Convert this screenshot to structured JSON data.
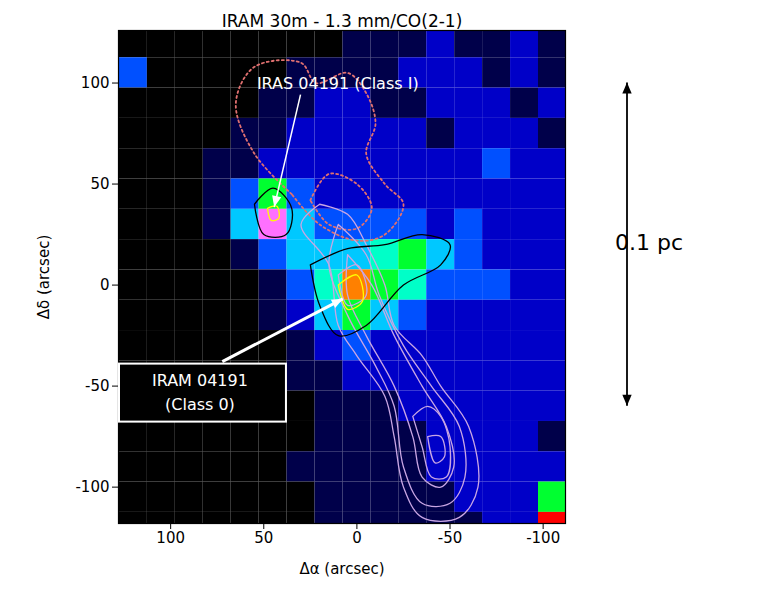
{
  "chart_data": {
    "type": "heatmap",
    "title": "IRAM 30m - 1.3 mm/CO(2-1)",
    "x_label": "Δα (arcsec)",
    "y_label": "Δδ (arcsec)",
    "xlim": [
      128,
      -112
    ],
    "ylim": [
      -118,
      126
    ],
    "xticks": [
      100,
      50,
      0,
      -50,
      -100
    ],
    "yticks": [
      -100,
      -50,
      0,
      50,
      100
    ],
    "cells": {
      "zlim": [
        0,
        10
      ],
      "x": [
        120,
        105,
        90,
        75,
        60,
        45,
        30,
        15,
        0,
        -15,
        -30,
        -45,
        -60,
        -75,
        -90,
        -105
      ],
      "y": [
        120,
        105,
        90,
        75,
        60,
        45,
        30,
        15,
        0,
        -15,
        -30,
        -45,
        -60,
        -75,
        -90,
        -105,
        -120
      ],
      "values": [
        [
          0,
          0,
          0,
          0,
          0,
          0,
          0,
          0,
          1,
          1,
          1,
          2,
          1,
          1,
          2,
          1
        ],
        [
          3,
          0,
          0,
          0,
          0,
          0,
          1,
          1,
          1,
          1,
          2,
          2,
          2,
          1,
          2,
          1
        ],
        [
          0,
          0,
          0,
          0,
          0,
          1,
          1,
          2,
          2,
          1,
          1,
          2,
          2,
          2,
          1,
          2
        ],
        [
          0,
          0,
          0,
          0,
          1,
          1,
          2,
          2,
          2,
          2,
          2,
          1,
          2,
          2,
          2,
          1
        ],
        [
          0,
          0,
          0,
          1,
          1,
          2,
          2,
          2,
          2,
          2,
          2,
          2,
          2,
          3,
          2,
          2
        ],
        [
          0,
          0,
          0,
          1,
          3,
          6,
          3,
          2,
          2,
          2,
          2,
          2,
          2,
          2,
          2,
          2
        ],
        [
          0,
          0,
          0,
          1,
          4,
          10,
          4,
          3,
          3,
          3,
          3,
          2,
          3,
          2,
          2,
          2
        ],
        [
          0,
          0,
          0,
          0,
          1,
          3,
          4,
          4,
          4,
          5,
          6,
          4,
          3,
          2,
          2,
          2
        ],
        [
          0,
          0,
          0,
          0,
          0,
          1,
          3,
          5,
          8,
          6,
          5,
          3,
          3,
          3,
          2,
          2
        ],
        [
          0,
          0,
          0,
          0,
          0,
          1,
          2,
          4,
          6,
          4,
          3,
          2,
          2,
          2,
          2,
          2
        ],
        [
          0,
          0,
          0,
          0,
          0,
          0,
          1,
          2,
          3,
          2,
          2,
          2,
          2,
          2,
          2,
          2
        ],
        [
          0,
          0,
          0,
          0,
          0,
          0,
          1,
          1,
          2,
          2,
          2,
          2,
          2,
          2,
          2,
          2
        ],
        [
          0,
          0,
          0,
          0,
          0,
          0,
          0,
          1,
          1,
          1,
          2,
          2,
          2,
          2,
          2,
          2
        ],
        [
          0,
          0,
          0,
          0,
          0,
          0,
          0,
          1,
          1,
          1,
          1,
          2,
          2,
          2,
          2,
          1
        ],
        [
          0,
          0,
          0,
          0,
          0,
          0,
          1,
          1,
          1,
          1,
          1,
          2,
          2,
          2,
          2,
          2
        ],
        [
          0,
          0,
          0,
          0,
          0,
          0,
          0,
          1,
          1,
          1,
          1,
          1,
          2,
          2,
          2,
          6
        ],
        [
          0,
          0,
          0,
          0,
          0,
          0,
          0,
          1,
          1,
          1,
          1,
          1,
          1,
          2,
          2,
          9
        ]
      ]
    },
    "contours": [
      {
        "color": "#e07070",
        "line_style": "dotted",
        "points": [
          [
            35,
            45
          ],
          [
            55,
            65
          ],
          [
            65,
            90
          ],
          [
            55,
            108
          ],
          [
            30,
            110
          ],
          [
            22,
            100
          ],
          [
            5,
            105
          ],
          [
            -5,
            95
          ],
          [
            -10,
            80
          ],
          [
            -5,
            65
          ],
          [
            -15,
            50
          ],
          [
            -25,
            40
          ],
          [
            -15,
            25
          ],
          [
            0,
            22
          ],
          [
            20,
            30
          ],
          [
            35,
            45
          ]
        ]
      },
      {
        "color": "#e07070",
        "line_style": "dotted",
        "points": [
          [
            25,
            42
          ],
          [
            15,
            55
          ],
          [
            0,
            50
          ],
          [
            -8,
            38
          ],
          [
            0,
            28
          ],
          [
            15,
            30
          ],
          [
            25,
            42
          ]
        ]
      },
      {
        "color": "#c9a6e4",
        "line_style": "solid",
        "points": [
          [
            20,
            40
          ],
          [
            30,
            30
          ],
          [
            15,
            10
          ],
          [
            10,
            -20
          ],
          [
            0,
            -35
          ],
          [
            -15,
            -55
          ],
          [
            -20,
            -75
          ],
          [
            -25,
            -100
          ],
          [
            -35,
            -115
          ],
          [
            -55,
            -115
          ],
          [
            -65,
            -100
          ],
          [
            -60,
            -70
          ],
          [
            -45,
            -50
          ],
          [
            -35,
            -35
          ],
          [
            -20,
            -20
          ],
          [
            -15,
            0
          ],
          [
            -5,
            20
          ],
          [
            5,
            35
          ],
          [
            20,
            40
          ]
        ]
      },
      {
        "color": "#c9a6e4",
        "line_style": "solid",
        "points": [
          [
            10,
            30
          ],
          [
            15,
            10
          ],
          [
            5,
            -15
          ],
          [
            -10,
            -40
          ],
          [
            -20,
            -60
          ],
          [
            -25,
            -90
          ],
          [
            -35,
            -108
          ],
          [
            -50,
            -108
          ],
          [
            -58,
            -95
          ],
          [
            -55,
            -70
          ],
          [
            -40,
            -50
          ],
          [
            -25,
            -30
          ],
          [
            -12,
            -5
          ],
          [
            -5,
            15
          ],
          [
            10,
            30
          ]
        ]
      },
      {
        "color": "#c9a6e4",
        "line_style": "solid",
        "points": [
          [
            5,
            15
          ],
          [
            5,
            -5
          ],
          [
            -5,
            -25
          ],
          [
            -20,
            -50
          ],
          [
            -30,
            -75
          ],
          [
            -35,
            -95
          ],
          [
            -45,
            -100
          ],
          [
            -52,
            -90
          ],
          [
            -48,
            -70
          ],
          [
            -35,
            -50
          ],
          [
            -20,
            -25
          ],
          [
            -8,
            0
          ],
          [
            5,
            15
          ]
        ]
      },
      {
        "color": "#c9a6e4",
        "line_style": "solid",
        "points": [
          [
            -30,
            -65
          ],
          [
            -35,
            -80
          ],
          [
            -40,
            -95
          ],
          [
            -48,
            -95
          ],
          [
            -50,
            -80
          ],
          [
            -45,
            -65
          ],
          [
            -38,
            -60
          ],
          [
            -30,
            -65
          ]
        ]
      },
      {
        "color": "#c9a6e4",
        "line_style": "solid",
        "points": [
          [
            -38,
            -75
          ],
          [
            -42,
            -88
          ],
          [
            -47,
            -85
          ],
          [
            -45,
            -75
          ],
          [
            -38,
            -75
          ]
        ]
      },
      {
        "color": "#c9a6e4",
        "line_style": "solid",
        "points": [
          [
            10,
            5
          ],
          [
            5,
            -10
          ],
          [
            -5,
            -5
          ],
          [
            0,
            10
          ],
          [
            10,
            5
          ]
        ]
      },
      {
        "color": "#000000",
        "line_style": "solid",
        "points": [
          [
            55,
            40
          ],
          [
            50,
            25
          ],
          [
            38,
            25
          ],
          [
            35,
            38
          ],
          [
            45,
            48
          ],
          [
            55,
            40
          ]
        ]
      },
      {
        "color": "#000000",
        "line_style": "solid",
        "points": [
          [
            25,
            10
          ],
          [
            20,
            -10
          ],
          [
            10,
            -25
          ],
          [
            -5,
            -20
          ],
          [
            -25,
            0
          ],
          [
            -45,
            10
          ],
          [
            -50,
            20
          ],
          [
            -35,
            25
          ],
          [
            -15,
            20
          ],
          [
            5,
            18
          ],
          [
            25,
            10
          ]
        ]
      },
      {
        "color": "#ffff00",
        "line_style": "solid",
        "points": [
          [
            48,
            38
          ],
          [
            46,
            32
          ],
          [
            42,
            33
          ],
          [
            43,
            39
          ],
          [
            48,
            38
          ]
        ]
      },
      {
        "color": "#ffff00",
        "line_style": "solid",
        "points": [
          [
            10,
            0
          ],
          [
            5,
            -12
          ],
          [
            -3,
            -8
          ],
          [
            0,
            5
          ],
          [
            10,
            0
          ]
        ]
      }
    ],
    "annotations": [
      {
        "text": [
          "IRAS 04191 (Class I)"
        ],
        "target": [
          45,
          35
        ]
      },
      {
        "text": [
          "IRAM 04191",
          "(Class 0)"
        ],
        "target": [
          3,
          -5
        ]
      }
    ],
    "scale_bar": {
      "label": "0.1 pc",
      "from": 100,
      "to": -60
    }
  }
}
